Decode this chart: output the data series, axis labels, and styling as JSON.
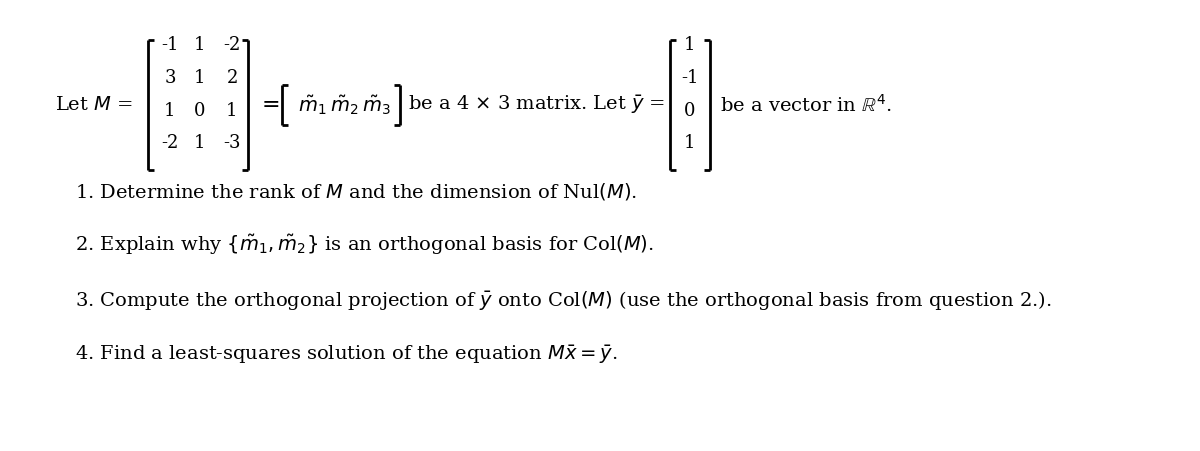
{
  "bg_color": "#ffffff",
  "matrix_M": [
    [
      "-1",
      "1",
      "-2"
    ],
    [
      "3",
      "1",
      "2"
    ],
    [
      "1",
      "0",
      "1"
    ],
    [
      "-2",
      "1",
      "-3"
    ]
  ],
  "vector_y": [
    "1",
    "-1",
    "0",
    "1"
  ],
  "fontsize_text": 14,
  "fontsize_matrix": 13
}
